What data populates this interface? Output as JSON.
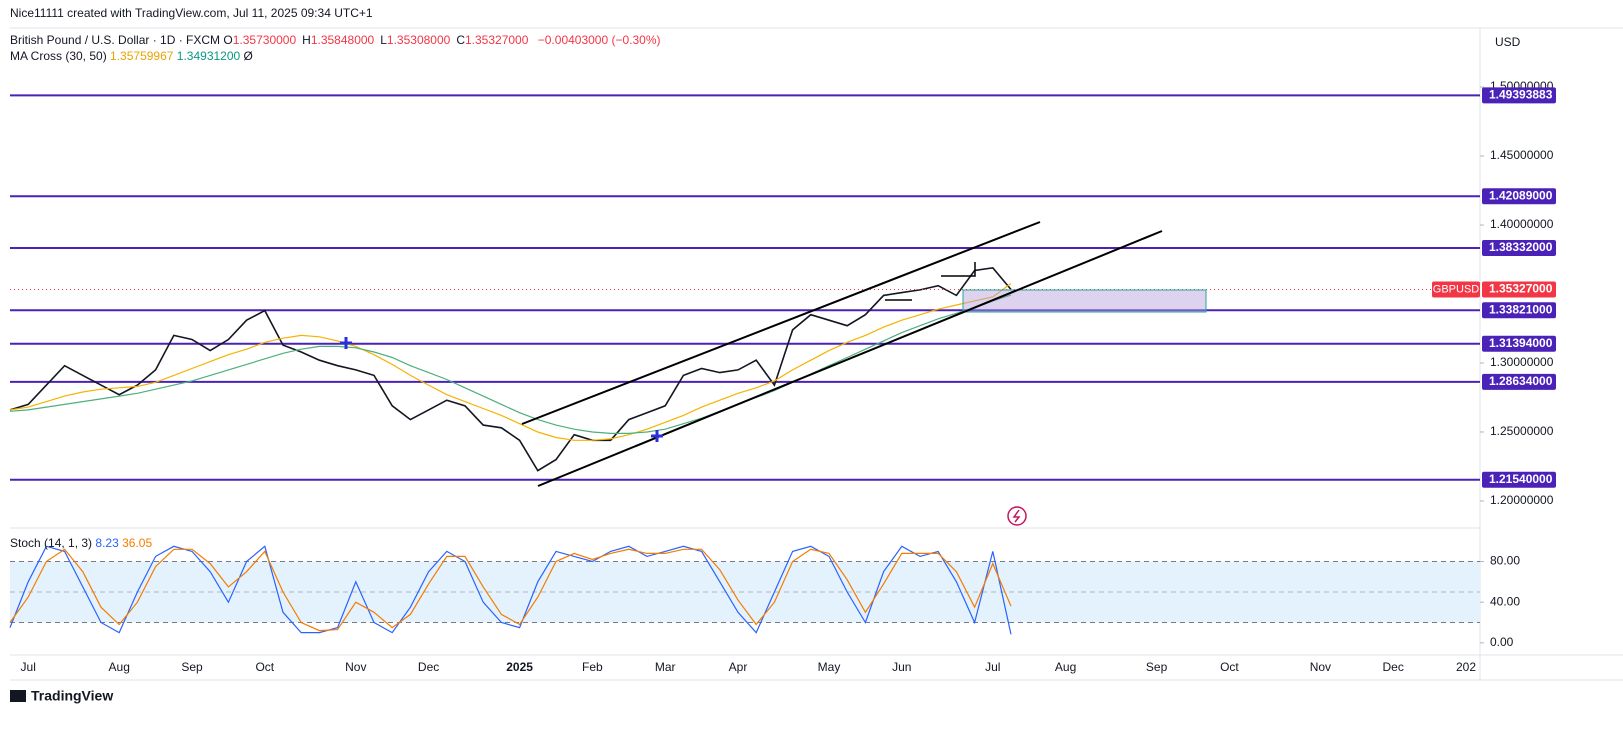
{
  "header": {
    "credit": "Nice11111 created with TradingView.com, Jul 11, 2025 09:34 UTC+1",
    "symbol": "British Pound / U.S. Dollar · 1D · FXCM",
    "ohlc": [
      {
        "key": "O",
        "value": "1.35730000"
      },
      {
        "key": "H",
        "value": "1.35848000"
      },
      {
        "key": "L",
        "value": "1.35308000"
      },
      {
        "key": "C",
        "value": "1.35327000"
      }
    ],
    "change": "−0.00403000 (−0.30%)",
    "ma": {
      "label": "MA Cross (30, 50)",
      "values": [
        "1.35759967",
        "1.34931200"
      ],
      "extra": "Ø"
    },
    "stoch": {
      "label": "Stoch (14, 1, 3)",
      "values": [
        "8.23",
        "36.05"
      ]
    },
    "currency": "USD"
  },
  "footer": "TradingView",
  "chart_data": [
    {
      "type": "line",
      "categories": [
        null,
        "Jul",
        null,
        null,
        null,
        null,
        "Aug",
        null,
        null,
        null,
        "Sep",
        null,
        null,
        null,
        "Oct",
        null,
        null,
        null,
        null,
        "Nov",
        null,
        null,
        null,
        "Dec",
        null,
        null,
        null,
        null,
        "2025",
        null,
        null,
        null,
        "Feb",
        null,
        null,
        null,
        "Mar",
        null,
        null,
        null,
        "Apr",
        null,
        null,
        null,
        null,
        "May",
        null,
        null,
        null,
        "Jun",
        null,
        null,
        null,
        null,
        "Jul",
        null,
        null,
        null,
        "Aug",
        null,
        null,
        null,
        null,
        "Sep",
        null,
        null,
        null,
        "Oct",
        null,
        null,
        null,
        null,
        "Nov",
        null,
        null,
        null,
        "Dec",
        null,
        null,
        null,
        "202"
      ],
      "series": [
        {
          "name": "GBPUSD",
          "color": "#131722",
          "values": [
            1.266,
            1.27,
            1.284,
            1.298,
            1.291,
            1.284,
            1.277,
            1.284,
            1.295,
            1.32,
            1.317,
            1.309,
            1.317,
            1.331,
            1.338,
            1.313,
            1.308,
            1.302,
            1.298,
            1.295,
            1.291,
            1.269,
            1.259,
            1.266,
            1.273,
            1.269,
            1.255,
            1.253,
            1.244,
            1.222,
            1.23,
            1.248,
            1.244,
            1.244,
            1.259,
            1.264,
            1.269,
            1.291,
            1.296,
            1.293,
            1.295,
            1.302,
            1.284,
            1.324,
            1.335,
            1.331,
            1.327,
            1.335,
            1.349,
            1.351,
            1.353,
            1.356,
            1.349,
            1.367,
            1.369,
            1.35327,
            null,
            null,
            null,
            null,
            null,
            null,
            null,
            null,
            null,
            null,
            null,
            null,
            null,
            null,
            null,
            null,
            null,
            null,
            null,
            null,
            null,
            null,
            null,
            null,
            null
          ]
        },
        {
          "color": "#f5b300",
          "values": [
            1.266,
            1.268,
            1.272,
            1.276,
            1.279,
            1.281,
            1.282,
            1.283,
            1.286,
            1.291,
            1.296,
            1.301,
            1.306,
            1.31,
            1.315,
            1.318,
            1.32,
            1.319,
            1.316,
            1.312,
            1.306,
            1.299,
            1.291,
            1.284,
            1.277,
            1.272,
            1.267,
            1.262,
            1.256,
            1.25,
            1.246,
            1.244,
            1.244,
            1.245,
            1.248,
            1.252,
            1.257,
            1.262,
            1.268,
            1.273,
            1.278,
            1.282,
            1.287,
            1.295,
            1.302,
            1.309,
            1.315,
            1.32,
            1.326,
            1.331,
            1.335,
            1.339,
            1.342,
            1.345,
            1.348,
            1.35759967,
            null,
            null,
            null,
            null,
            null,
            null,
            null,
            null,
            null,
            null,
            null,
            null,
            null,
            null,
            null,
            null,
            null,
            null,
            null,
            null,
            null,
            null,
            null,
            null,
            null
          ]
        },
        {
          "color": "#4caf7d",
          "values": [
            1.265,
            1.266,
            1.268,
            1.27,
            1.272,
            1.274,
            1.276,
            1.278,
            1.281,
            1.284,
            1.287,
            1.291,
            1.295,
            1.299,
            1.303,
            1.307,
            1.31,
            1.312,
            1.312,
            1.311,
            1.308,
            1.304,
            1.298,
            1.293,
            1.288,
            1.282,
            1.276,
            1.27,
            1.264,
            1.259,
            1.255,
            1.252,
            1.25,
            1.249,
            1.249,
            1.25,
            1.252,
            1.256,
            1.26,
            1.265,
            1.27,
            1.275,
            1.28,
            1.286,
            1.292,
            1.298,
            1.304,
            1.31,
            1.316,
            1.322,
            1.327,
            1.332,
            1.336,
            1.34,
            1.345,
            1.349312,
            null,
            null,
            null,
            null,
            null,
            null,
            null,
            null,
            null,
            null,
            null,
            null,
            null,
            null,
            null,
            null,
            null,
            null,
            null,
            null,
            null,
            null,
            null,
            null,
            null
          ]
        }
      ],
      "ylim": [
        1.1804,
        1.5428
      ],
      "yticks": [
        {
          "value": 1.5,
          "label": "1.50000000"
        },
        {
          "value": 1.45,
          "label": "1.45000000"
        },
        {
          "value": 1.4,
          "label": "1.40000000"
        },
        {
          "value": 1.3,
          "label": "1.30000000"
        },
        {
          "value": 1.25,
          "label": "1.25000000"
        },
        {
          "value": 1.2,
          "label": "1.20000000"
        }
      ],
      "levels": [
        {
          "value": 1.49393883,
          "label": "1.49393883"
        },
        {
          "value": 1.42089,
          "label": "1.42089000"
        },
        {
          "value": 1.38332,
          "label": "1.38332000"
        },
        {
          "value": 1.33821,
          "label": "1.33821000"
        },
        {
          "value": 1.31394,
          "label": "1.31394000"
        },
        {
          "value": 1.28634,
          "label": "1.28634000"
        },
        {
          "value": 1.2154,
          "label": "1.21540000"
        }
      ],
      "level_color": "#4a22b8",
      "last_price": {
        "name": "GBPUSD",
        "value": 1.35327,
        "label": "1.35327000",
        "color": "#f23645"
      },
      "grid": false
    },
    {
      "type": "line",
      "series": [
        {
          "color": "#2962ff",
          "values": [
            15,
            60,
            95,
            90,
            55,
            20,
            10,
            50,
            85,
            95,
            90,
            70,
            40,
            80,
            95,
            30,
            10,
            10,
            15,
            60,
            20,
            10,
            35,
            70,
            90,
            80,
            40,
            20,
            15,
            60,
            90,
            85,
            80,
            90,
            95,
            85,
            90,
            95,
            90,
            60,
            30,
            10,
            50,
            90,
            95,
            85,
            50,
            20,
            70,
            95,
            85,
            90,
            60,
            20,
            90,
            8.23,
            null,
            null,
            null,
            null,
            null,
            null,
            null,
            null,
            null,
            null,
            null,
            null,
            null,
            null,
            null,
            null,
            null,
            null,
            null,
            null,
            null,
            null,
            null,
            null,
            null
          ]
        },
        {
          "color": "#f57c00",
          "values": [
            20,
            45,
            80,
            92,
            70,
            35,
            18,
            40,
            75,
            92,
            92,
            78,
            55,
            70,
            90,
            50,
            20,
            12,
            13,
            40,
            30,
            15,
            28,
            58,
            85,
            85,
            55,
            28,
            18,
            45,
            80,
            88,
            82,
            88,
            92,
            88,
            88,
            92,
            92,
            72,
            42,
            18,
            40,
            80,
            92,
            88,
            62,
            30,
            58,
            88,
            88,
            88,
            70,
            35,
            78,
            36.05,
            null,
            null,
            null,
            null,
            null,
            null,
            null,
            null,
            null,
            null,
            null,
            null,
            null,
            null,
            null,
            null,
            null,
            null,
            null,
            null,
            null,
            null,
            null,
            null,
            null
          ]
        }
      ],
      "ylim": [
        -12,
        113
      ],
      "yticks": [
        {
          "value": 80,
          "label": "80.00"
        },
        {
          "value": 40,
          "label": "40.00"
        },
        {
          "value": 0,
          "label": "0.00"
        }
      ],
      "band": [
        20,
        80
      ],
      "midline": 50,
      "band_color": "#e3f2fd",
      "grid": false
    }
  ]
}
